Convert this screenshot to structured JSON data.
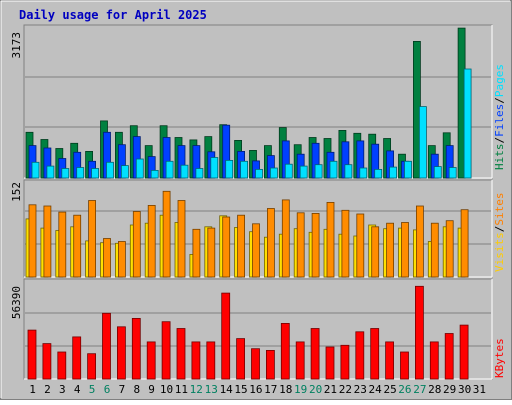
{
  "chart_data": {
    "type": "bar",
    "title": "Daily usage for April 2025",
    "categories": [
      "1",
      "2",
      "3",
      "4",
      "5",
      "6",
      "7",
      "8",
      "9",
      "10",
      "11",
      "12",
      "13",
      "14",
      "15",
      "16",
      "17",
      "18",
      "19",
      "20",
      "21",
      "22",
      "23",
      "24",
      "25",
      "26",
      "27",
      "28",
      "29",
      "30",
      "31"
    ],
    "weekend_days": [
      "5",
      "6",
      "12",
      "13",
      "19",
      "20",
      "26",
      "27"
    ],
    "panels": [
      {
        "id": "top",
        "max_label": "3173",
        "ylim": [
          0,
          3173
        ],
        "grid": true,
        "legend": [
          {
            "text": "Hits",
            "color": "#008040"
          },
          {
            "text": "/",
            "color": "#000000"
          },
          {
            "text": "Files",
            "color": "#0040ff"
          },
          {
            "text": "/",
            "color": "#000000"
          },
          {
            "text": "Pages",
            "color": "#00e0ff"
          }
        ],
        "series": [
          {
            "name": "Hits",
            "color": "#008040",
            "values": [
              960,
              810,
              620,
              730,
              560,
              1200,
              960,
              1100,
              680,
              1100,
              850,
              800,
              870,
              1120,
              790,
              580,
              680,
              1060,
              700,
              850,
              830,
              1000,
              940,
              920,
              830,
              500,
              2870,
              680,
              950,
              3150,
              0
            ]
          },
          {
            "name": "Files",
            "color": "#0040ff",
            "values": [
              680,
              630,
              410,
              540,
              350,
              960,
              700,
              870,
              450,
              850,
              680,
              680,
              550,
              1110,
              560,
              360,
              470,
              780,
              500,
              730,
              540,
              760,
              780,
              710,
              570,
              350,
              0,
              500,
              680,
              0,
              0
            ]
          },
          {
            "name": "Pages",
            "color": "#00e0ff",
            "values": [
              330,
              250,
              200,
              220,
              200,
              330,
              260,
              400,
              160,
              350,
              270,
              200,
              430,
              370,
              350,
              180,
              210,
              290,
              250,
              280,
              350,
              280,
              210,
              180,
              230,
              350,
              1500,
              240,
              220,
              2290,
              0
            ]
          }
        ]
      },
      {
        "id": "middle",
        "max_label": "152",
        "ylim": [
          0,
          152
        ],
        "grid": true,
        "legend": [
          {
            "text": "Visits",
            "color": "#ffcc00"
          },
          {
            "text": "/",
            "color": "#000000"
          },
          {
            "text": "Sites",
            "color": "#ff8000"
          }
        ],
        "series": [
          {
            "name": "Visits",
            "color": "#ffe000",
            "values": [
              95,
              80,
              76,
              82,
              59,
              56,
              55,
              85,
              88,
              101,
              89,
              37,
              82,
              100,
              81,
              74,
              65,
              70,
              79,
              73,
              78,
              70,
              67,
              85,
              79,
              80,
              77,
              58,
              82,
              80,
              0
            ]
          },
          {
            "name": "Sites",
            "color": "#ff8c00",
            "values": [
              118,
              116,
              106,
              101,
              125,
              63,
              58,
              107,
              117,
              140,
              125,
              78,
              80,
              98,
              101,
              87,
              112,
              126,
              105,
              104,
              122,
              109,
              103,
              82,
              88,
              89,
              116,
              88,
              92,
              110,
              0
            ]
          }
        ]
      },
      {
        "id": "bottom",
        "max_label": "56390",
        "ylim": [
          0,
          56390
        ],
        "grid": true,
        "legend": [
          {
            "text": "KBytes",
            "color": "#ff0000"
          }
        ],
        "series": [
          {
            "name": "KBytes",
            "color": "#ff0000",
            "values": [
              29000,
              21000,
              16000,
              25000,
              15000,
              39000,
              31000,
              36000,
              22000,
              34000,
              30000,
              22000,
              22000,
              51000,
              24000,
              18000,
              17000,
              33000,
              22000,
              30000,
              19000,
              20000,
              28000,
              30000,
              22000,
              16000,
              55000,
              22000,
              27000,
              32000,
              0
            ]
          }
        ]
      }
    ]
  }
}
